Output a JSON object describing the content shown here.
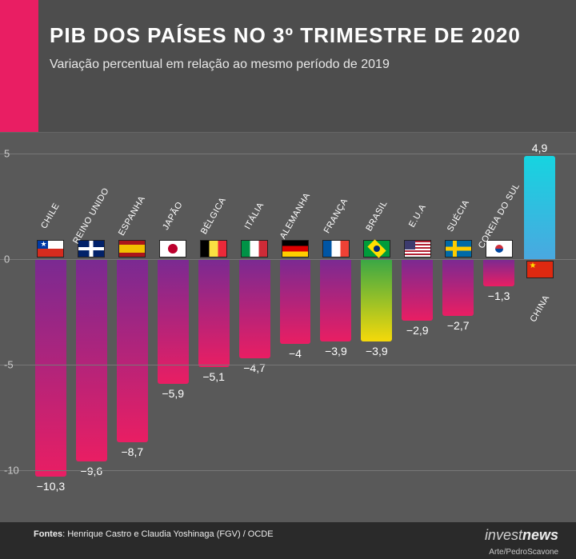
{
  "header": {
    "title": "PIB DOS PAÍSES NO 3º TRIMESTRE DE 2020",
    "subtitle": "Variação percentual em relação ao mesmo período de 2019",
    "accent_color": "#e91e63"
  },
  "chart": {
    "type": "bar",
    "background_color": "#595959",
    "grid_color": "#777777",
    "text_color": "#ffffff",
    "ymin": -11,
    "ymax": 6,
    "yticks": [
      5,
      0,
      -5,
      -10
    ],
    "bar_gradient_top": "#7a2a92",
    "bar_gradient_bottom": "#e91e63",
    "positive_gradient_top": "#16d4e0",
    "positive_gradient_bottom": "#4aa8e0",
    "brazil_gradient_top": "#3aa746",
    "brazil_gradient_bottom": "#f5d90a",
    "label_fontsize": 11,
    "value_fontsize": 14,
    "countries": [
      {
        "name": "Chile",
        "value": -10.3,
        "display": "−10,3",
        "flag": "fl-cl",
        "highlight": false
      },
      {
        "name": "Reino Unido",
        "value": -9.6,
        "display": "−9,6",
        "flag": "fl-uk",
        "highlight": false
      },
      {
        "name": "Espanha",
        "value": -8.7,
        "display": "−8,7",
        "flag": "fl-es",
        "highlight": false
      },
      {
        "name": "Japão",
        "value": -5.9,
        "display": "−5,9",
        "flag": "fl-jp",
        "highlight": false
      },
      {
        "name": "Bélgica",
        "value": -5.1,
        "display": "−5,1",
        "flag": "fl-be",
        "highlight": false
      },
      {
        "name": "Itália",
        "value": -4.7,
        "display": "−4,7",
        "flag": "fl-it",
        "highlight": false
      },
      {
        "name": "Alemanha",
        "value": -4.0,
        "display": "−4",
        "flag": "fl-de",
        "highlight": false
      },
      {
        "name": "França",
        "value": -3.9,
        "display": "−3,9",
        "flag": "fl-fr",
        "highlight": false
      },
      {
        "name": "Brasil",
        "value": -3.9,
        "display": "−3,9",
        "flag": "fl-br",
        "highlight": true
      },
      {
        "name": "E.U.A",
        "value": -2.9,
        "display": "−2,9",
        "flag": "fl-us",
        "highlight": false
      },
      {
        "name": "Suécia",
        "value": -2.7,
        "display": "−2,7",
        "flag": "fl-se",
        "highlight": false
      },
      {
        "name": "Coreia do Sul",
        "value": -1.3,
        "display": "−1,3",
        "flag": "fl-kr",
        "highlight": false
      },
      {
        "name": "China",
        "value": 4.9,
        "display": "4,9",
        "flag": "fl-cn",
        "highlight": false
      }
    ]
  },
  "footer": {
    "sources_label": "Fontes",
    "sources_text": "Henrique Castro e Claudia Yoshinaga (FGV) / OCDE",
    "logo_light": "invest",
    "logo_bold": "news",
    "credit": "Arte/PedroScavone",
    "background_color": "#2a2a2a"
  }
}
